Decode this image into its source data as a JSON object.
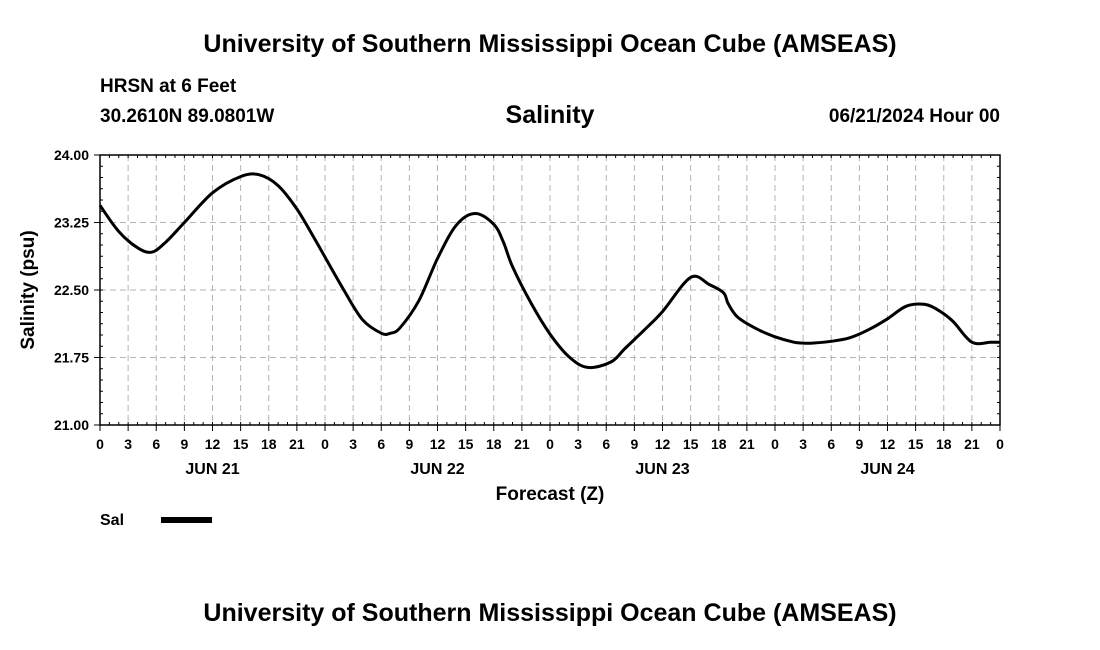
{
  "header": {
    "title": "University of Southern Mississippi Ocean Cube (AMSEAS)",
    "station": "HRSN at 6 Feet",
    "coords": "30.2610N  89.0801W",
    "variable": "Salinity",
    "datetime": "06/21/2024 Hour 00"
  },
  "footer": {
    "title": "University of Southern Mississippi Ocean Cube (AMSEAS)"
  },
  "colors": {
    "line": "#000000",
    "grid": "#b4b4b4",
    "background": "#ffffff"
  },
  "chart_data": {
    "type": "line",
    "title": "Salinity",
    "xlabel": "Forecast (Z)",
    "ylabel": "Salinity (psu)",
    "xlim": [
      0,
      96
    ],
    "ylim": [
      21.0,
      24.0
    ],
    "yticks": [
      "21.00",
      "21.75",
      "22.50",
      "23.25",
      "24.00"
    ],
    "xtick_labels": [
      "0",
      "3",
      "6",
      "9",
      "12",
      "15",
      "18",
      "21",
      "0",
      "3",
      "6",
      "9",
      "12",
      "15",
      "18",
      "21",
      "0",
      "3",
      "6",
      "9",
      "12",
      "15",
      "18",
      "21",
      "0",
      "3",
      "6",
      "9",
      "12",
      "15",
      "18",
      "21",
      "0"
    ],
    "day_labels": [
      {
        "label": "JUN 21",
        "hour": 12
      },
      {
        "label": "JUN 22",
        "hour": 36
      },
      {
        "label": "JUN 23",
        "hour": 60
      },
      {
        "label": "JUN 24",
        "hour": 84
      }
    ],
    "grid": true,
    "legend": [
      {
        "name": "Sal",
        "position": "bottom-left"
      }
    ],
    "series": [
      {
        "name": "Sal",
        "x": [
          0,
          2,
          4,
          5.5,
          7,
          9,
          12,
          15,
          17,
          19,
          21,
          23,
          26,
          28,
          30,
          31,
          32,
          34,
          36,
          38,
          40,
          42,
          43,
          44,
          46,
          48,
          50,
          52,
          54.5,
          56,
          58,
          60,
          63,
          65,
          66.5,
          67,
          68,
          70,
          72,
          74,
          75,
          76,
          78,
          80,
          82,
          84,
          86,
          88,
          89.5,
          91,
          93,
          95,
          96
        ],
        "y": [
          23.44,
          23.15,
          22.97,
          22.92,
          23.03,
          23.25,
          23.58,
          23.76,
          23.78,
          23.66,
          23.4,
          23.05,
          22.5,
          22.17,
          22.02,
          22.02,
          22.08,
          22.38,
          22.85,
          23.22,
          23.35,
          23.23,
          23.04,
          22.76,
          22.35,
          22.01,
          21.76,
          21.64,
          21.7,
          21.85,
          22.05,
          22.26,
          22.64,
          22.56,
          22.47,
          22.35,
          22.2,
          22.07,
          21.98,
          21.92,
          21.91,
          21.91,
          21.93,
          21.97,
          22.06,
          22.18,
          22.32,
          22.34,
          22.27,
          22.15,
          21.92,
          21.92,
          21.92
        ]
      }
    ]
  }
}
